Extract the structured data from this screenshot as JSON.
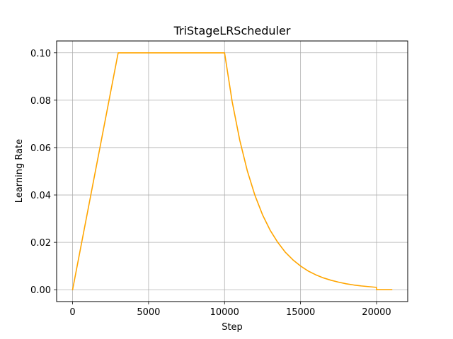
{
  "chart_data": {
    "type": "line",
    "title": "TriStageLRScheduler",
    "xlabel": "Step",
    "ylabel": "Learning Rate",
    "xlim": [
      -1050,
      22050
    ],
    "ylim": [
      -0.005,
      0.105
    ],
    "xticks": [
      0,
      5000,
      10000,
      15000,
      20000
    ],
    "xtick_labels": [
      "0",
      "5000",
      "10000",
      "15000",
      "20000"
    ],
    "yticks": [
      0.0,
      0.02,
      0.04,
      0.06,
      0.08,
      0.1
    ],
    "ytick_labels": [
      "0.00",
      "0.02",
      "0.04",
      "0.06",
      "0.08",
      "0.10"
    ],
    "grid": true,
    "legend": "none",
    "series": [
      {
        "color": "#ffa500",
        "x": [
          0,
          3000,
          10000,
          10500,
          11000,
          11500,
          12000,
          12500,
          13000,
          13500,
          14000,
          14500,
          15000,
          15500,
          16000,
          16500,
          17000,
          17500,
          18000,
          18500,
          19000,
          19500,
          20000,
          20000,
          21000
        ],
        "y": [
          0.0,
          0.1,
          0.1,
          0.0794,
          0.0631,
          0.0501,
          0.0398,
          0.0316,
          0.0251,
          0.02,
          0.0158,
          0.0126,
          0.01,
          0.0079,
          0.0063,
          0.005,
          0.004,
          0.0032,
          0.0025,
          0.002,
          0.0016,
          0.0013,
          0.001,
          0.0,
          0.0
        ]
      }
    ]
  }
}
